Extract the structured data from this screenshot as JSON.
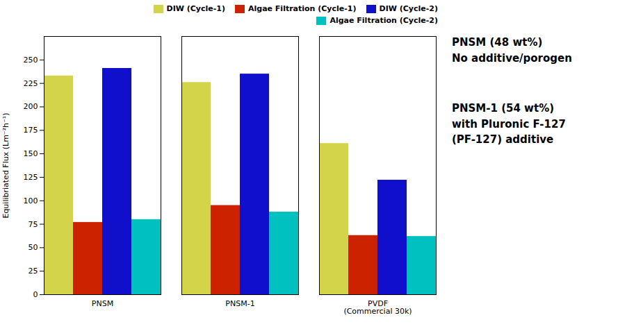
{
  "chart_data": {
    "type": "bar",
    "categories": [
      "PNSM",
      "PNSM-1",
      "PVDF\n(Commercial 30k)"
    ],
    "series": [
      {
        "name": "DIW (Cycle-1)",
        "color": "#d4d44a",
        "values": [
          233,
          226,
          161
        ]
      },
      {
        "name": "Algae Filtration (Cycle-1)",
        "color": "#cc2200",
        "values": [
          77,
          95,
          63
        ]
      },
      {
        "name": "DIW (Cycle-2)",
        "color": "#1010cc",
        "values": [
          241,
          235,
          122
        ]
      },
      {
        "name": "Algae Filtration (Cycle-2)",
        "color": "#00c0c0",
        "values": [
          80,
          88,
          62
        ]
      }
    ],
    "ylabel": "Equilibriated Flux (Lm⁻²h⁻¹)",
    "ylim": [
      0,
      275
    ],
    "yticks": [
      0,
      25,
      50,
      75,
      100,
      125,
      150,
      175,
      200,
      225,
      250
    ],
    "legend": "upper right",
    "annotations": [
      "PNSM (48 wt%)\nNo additive/porogen",
      "PNSM-1 (54 wt%)\nwith Pluronic F-127\n(PF-127) additive"
    ]
  }
}
